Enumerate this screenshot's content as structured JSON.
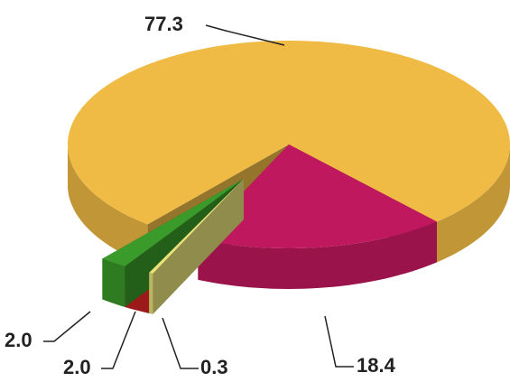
{
  "chart_data": {
    "type": "pie",
    "values": [
      18.4,
      0.3,
      2.0,
      2.0,
      77.3
    ],
    "value_labels": [
      "18.4",
      "0.3",
      "2.0",
      "2.0",
      "77.3"
    ],
    "colors": [
      "#c0185e",
      "#e9e27a",
      "#c42020",
      "#3a9a2a",
      "#f0bb45"
    ]
  }
}
